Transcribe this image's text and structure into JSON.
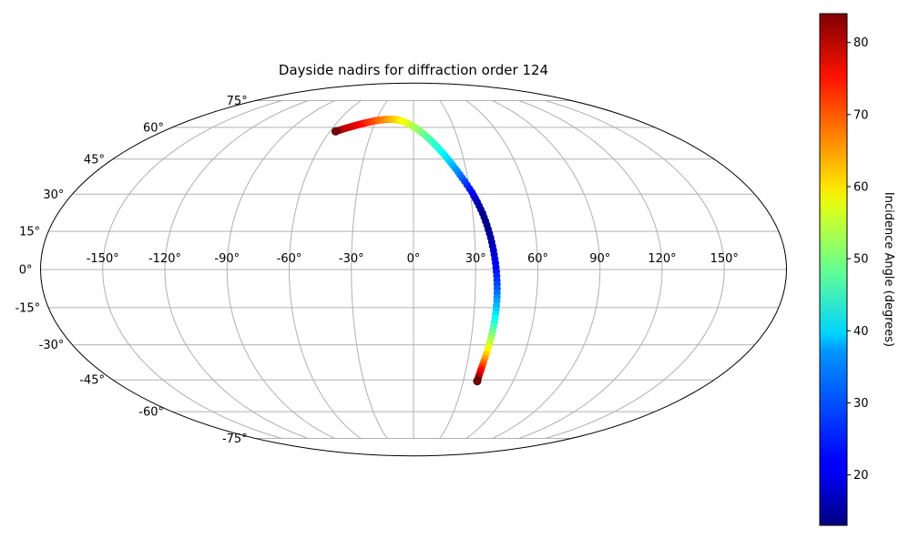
{
  "chart_data": {
    "type": "scatter",
    "projection": "mollweide",
    "title": "Dayside nadirs for diffraction order 124",
    "grid": true,
    "x_ticks": [
      "-150°",
      "-120°",
      "-90°",
      "-60°",
      "-30°",
      "0°",
      "30°",
      "60°",
      "90°",
      "120°",
      "150°"
    ],
    "y_ticks": [
      "-75°",
      "-60°",
      "-45°",
      "-30°",
      "-15°",
      "0°",
      "15°",
      "30°",
      "45°",
      "60°",
      "75°"
    ],
    "colorbar": {
      "label": "Incidence Angle (degrees)",
      "colormap": "jet",
      "range": [
        13,
        84
      ],
      "ticks": [
        "20",
        "30",
        "40",
        "50",
        "60",
        "70",
        "80"
      ]
    },
    "points": [
      {
        "lon": -56,
        "lat": 58,
        "c": 84
      },
      {
        "lon": -53,
        "lat": 58.8,
        "c": 82
      },
      {
        "lon": -50,
        "lat": 59.6,
        "c": 80
      },
      {
        "lon": -47,
        "lat": 60.3,
        "c": 79
      },
      {
        "lon": -44,
        "lat": 61,
        "c": 77
      },
      {
        "lon": -41,
        "lat": 61.6,
        "c": 76
      },
      {
        "lon": -38,
        "lat": 62.2,
        "c": 74
      },
      {
        "lon": -35,
        "lat": 62.7,
        "c": 72
      },
      {
        "lon": -32,
        "lat": 63.2,
        "c": 71
      },
      {
        "lon": -29,
        "lat": 63.6,
        "c": 69
      },
      {
        "lon": -26,
        "lat": 63.9,
        "c": 67
      },
      {
        "lon": -23,
        "lat": 64.1,
        "c": 66
      },
      {
        "lon": -20,
        "lat": 64.2,
        "c": 64
      },
      {
        "lon": -17,
        "lat": 64.2,
        "c": 62
      },
      {
        "lon": -14,
        "lat": 64.0,
        "c": 61
      },
      {
        "lon": -11,
        "lat": 63.6,
        "c": 59
      },
      {
        "lon": -8,
        "lat": 63.0,
        "c": 57
      },
      {
        "lon": -5,
        "lat": 62.2,
        "c": 56
      },
      {
        "lon": -2,
        "lat": 61.2,
        "c": 54
      },
      {
        "lon": 1,
        "lat": 60.0,
        "c": 52
      },
      {
        "lon": 4,
        "lat": 58.5,
        "c": 50
      },
      {
        "lon": 7,
        "lat": 56.8,
        "c": 48
      },
      {
        "lon": 10,
        "lat": 54.8,
        "c": 46
      },
      {
        "lon": 13,
        "lat": 52.5,
        "c": 44
      },
      {
        "lon": 16,
        "lat": 49.8,
        "c": 42
      },
      {
        "lon": 19,
        "lat": 46.8,
        "c": 39
      },
      {
        "lon": 22,
        "lat": 43.4,
        "c": 36
      },
      {
        "lon": 25,
        "lat": 39.6,
        "c": 32
      },
      {
        "lon": 28,
        "lat": 35.4,
        "c": 27
      },
      {
        "lon": 31,
        "lat": 30.8,
        "c": 22
      },
      {
        "lon": 33,
        "lat": 26.8,
        "c": 17
      },
      {
        "lon": 35,
        "lat": 22.2,
        "c": 14
      },
      {
        "lon": 36.5,
        "lat": 17.5,
        "c": 13
      },
      {
        "lon": 37.8,
        "lat": 12.5,
        "c": 15
      },
      {
        "lon": 38.8,
        "lat": 7.5,
        "c": 18
      },
      {
        "lon": 39.6,
        "lat": 2.5,
        "c": 21
      },
      {
        "lon": 40.2,
        "lat": -2.5,
        "c": 24
      },
      {
        "lon": 40.6,
        "lat": -7.5,
        "c": 28
      },
      {
        "lon": 40.8,
        "lat": -12.5,
        "c": 33
      },
      {
        "lon": 40.8,
        "lat": -17.5,
        "c": 38
      },
      {
        "lon": 40.6,
        "lat": -22.5,
        "c": 44
      },
      {
        "lon": 40.2,
        "lat": -27.5,
        "c": 51
      },
      {
        "lon": 39.6,
        "lat": -32.5,
        "c": 58
      },
      {
        "lon": 39.0,
        "lat": -37.0,
        "c": 66
      },
      {
        "lon": 38.6,
        "lat": -40.5,
        "c": 74
      },
      {
        "lon": 38.4,
        "lat": -43.5,
        "c": 80
      },
      {
        "lon": 38.4,
        "lat": -45.6,
        "c": 84
      }
    ]
  }
}
